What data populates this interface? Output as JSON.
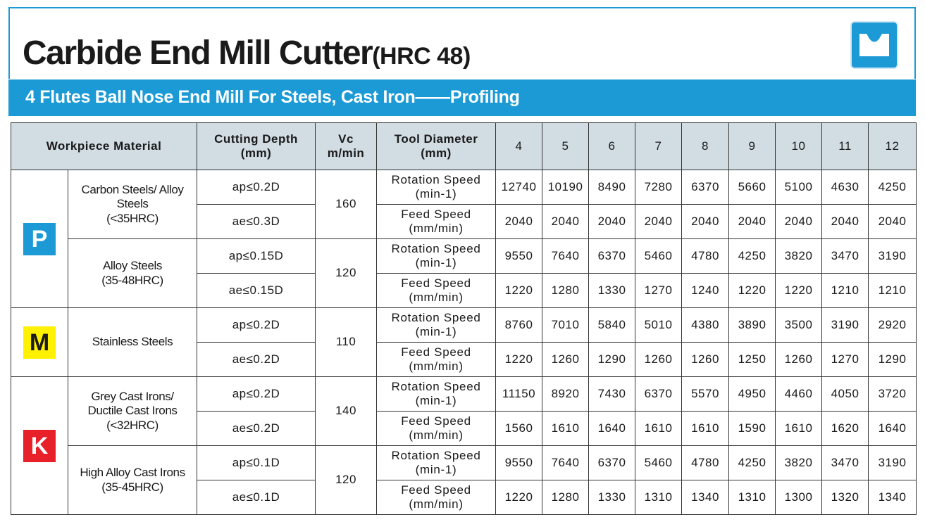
{
  "header": {
    "title": "Carbide End Mill Cutter",
    "title_suffix": "(HRC 48)",
    "subtitle": "4 Flutes Ball Nose End Mill For Steels, Cast Iron——Profiling",
    "logo_icon": "end-mill-profile-icon",
    "accent_color": "#1b9ad6"
  },
  "table": {
    "headers": {
      "workpiece": "Workpiece Material",
      "depth": [
        "Cutting Depth",
        "(mm)"
      ],
      "vc": [
        "Vc",
        "m/min"
      ],
      "tool_diameter": [
        "Tool Diameter",
        "(mm)"
      ],
      "diameters": [
        "4",
        "5",
        "6",
        "7",
        "8",
        "9",
        "10",
        "11",
        "12"
      ]
    },
    "groups": [
      {
        "letter": "P",
        "color": "#1b9ad6",
        "materials": [
          {
            "name": [
              "Carbon Steels/ Alloy",
              "Steels",
              "(<35HRC)"
            ],
            "vc": "160",
            "rows": [
              {
                "depth": "ap≤0.2D",
                "param": [
                  "Rotation Speed",
                  "(min-1)"
                ],
                "values": [
                  "12740",
                  "10190",
                  "8490",
                  "7280",
                  "6370",
                  "5660",
                  "5100",
                  "4630",
                  "4250"
                ]
              },
              {
                "depth": "ae≤0.3D",
                "param": [
                  "Feed Speed",
                  "(mm/min)"
                ],
                "values": [
                  "2040",
                  "2040",
                  "2040",
                  "2040",
                  "2040",
                  "2040",
                  "2040",
                  "2040",
                  "2040"
                ]
              }
            ]
          },
          {
            "name": [
              "Alloy Steels",
              "(35-48HRC)"
            ],
            "vc": "120",
            "rows": [
              {
                "depth": "ap≤0.15D",
                "param": [
                  "Rotation Speed",
                  "(min-1)"
                ],
                "values": [
                  "9550",
                  "7640",
                  "6370",
                  "5460",
                  "4780",
                  "4250",
                  "3820",
                  "3470",
                  "3190"
                ]
              },
              {
                "depth": "ae≤0.15D",
                "param": [
                  "Feed Speed",
                  "(mm/min)"
                ],
                "values": [
                  "1220",
                  "1280",
                  "1330",
                  "1270",
                  "1240",
                  "1220",
                  "1220",
                  "1210",
                  "1210"
                ]
              }
            ]
          }
        ]
      },
      {
        "letter": "M",
        "color": "#fff100",
        "materials": [
          {
            "name": [
              "Stainless Steels"
            ],
            "vc": "110",
            "rows": [
              {
                "depth": "ap≤0.2D",
                "param": [
                  "Rotation Speed",
                  "(min-1)"
                ],
                "values": [
                  "8760",
                  "7010",
                  "5840",
                  "5010",
                  "4380",
                  "3890",
                  "3500",
                  "3190",
                  "2920"
                ]
              },
              {
                "depth": "ae≤0.2D",
                "param": [
                  "Feed Speed",
                  "(mm/min)"
                ],
                "values": [
                  "1220",
                  "1260",
                  "1290",
                  "1260",
                  "1260",
                  "1250",
                  "1260",
                  "1270",
                  "1290"
                ]
              }
            ]
          }
        ]
      },
      {
        "letter": "K",
        "color": "#e8202a",
        "materials": [
          {
            "name": [
              "Grey Cast Irons/",
              "Ductile Cast Irons",
              "(<32HRC)"
            ],
            "vc": "140",
            "rows": [
              {
                "depth": "ap≤0.2D",
                "param": [
                  "Rotation Speed",
                  "(min-1)"
                ],
                "values": [
                  "11150",
                  "8920",
                  "7430",
                  "6370",
                  "5570",
                  "4950",
                  "4460",
                  "4050",
                  "3720"
                ]
              },
              {
                "depth": "ae≤0.2D",
                "param": [
                  "Feed Speed",
                  "(mm/min)"
                ],
                "values": [
                  "1560",
                  "1610",
                  "1640",
                  "1610",
                  "1610",
                  "1590",
                  "1610",
                  "1620",
                  "1640"
                ]
              }
            ]
          },
          {
            "name": [
              "High Alloy Cast Irons",
              "(35-45HRC)"
            ],
            "vc": "120",
            "rows": [
              {
                "depth": "ap≤0.1D",
                "param": [
                  "Rotation Speed",
                  "(min-1)"
                ],
                "values": [
                  "9550",
                  "7640",
                  "6370",
                  "5460",
                  "4780",
                  "4250",
                  "3820",
                  "3470",
                  "3190"
                ]
              },
              {
                "depth": "ae≤0.1D",
                "param": [
                  "Feed Speed",
                  "(mm/min)"
                ],
                "values": [
                  "1220",
                  "1280",
                  "1330",
                  "1310",
                  "1340",
                  "1310",
                  "1300",
                  "1320",
                  "1340"
                ]
              }
            ]
          }
        ]
      }
    ]
  }
}
